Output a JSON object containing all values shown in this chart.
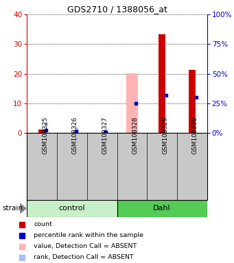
{
  "title": "GDS2710 / 1388056_at",
  "samples": [
    "GSM108325",
    "GSM108326",
    "GSM108327",
    "GSM108328",
    "GSM108329",
    "GSM108330"
  ],
  "red_bars": [
    1.2,
    0.0,
    0.0,
    0.0,
    33.2,
    21.3
  ],
  "blue_squares_left": [
    0.8,
    0.4,
    0.3,
    10.0,
    12.8,
    12.0
  ],
  "pink_bars": [
    0.0,
    0.0,
    0.0,
    20.2,
    0.0,
    0.0
  ],
  "lightblue_squares_left": [
    3.0,
    1.2,
    0.6,
    10.5,
    0.0,
    0.0
  ],
  "ylim_left": [
    0,
    40
  ],
  "ylim_right": [
    0,
    100
  ],
  "yticks_left": [
    0,
    10,
    20,
    30,
    40
  ],
  "yticks_right": [
    0,
    25,
    50,
    75,
    100
  ],
  "left_color": "#cc0000",
  "right_color": "#0000cc",
  "ctrl_color": "#c8f0c8",
  "dahl_color": "#55cc55",
  "lbl_bg": "#c8c8c8",
  "legend_items": [
    [
      "#cc0000",
      "count"
    ],
    [
      "#0000cc",
      "percentile rank within the sample"
    ],
    [
      "#ffb3b3",
      "value, Detection Call = ABSENT"
    ],
    [
      "#aabbff",
      "rank, Detection Call = ABSENT"
    ]
  ]
}
